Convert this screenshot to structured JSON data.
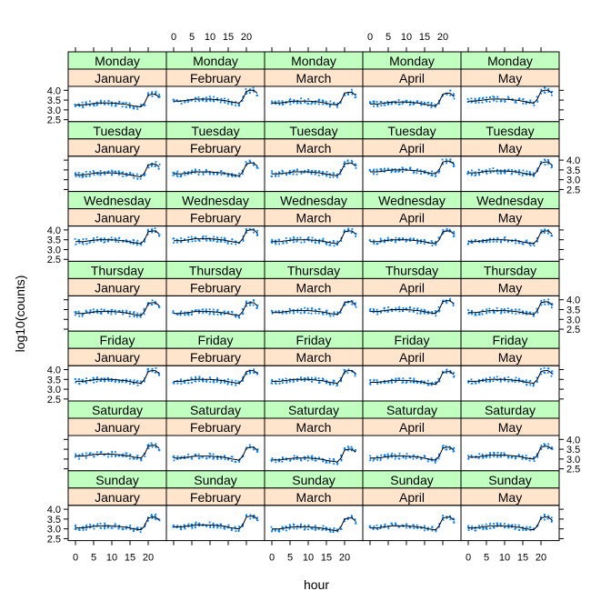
{
  "chart_data": {
    "type": "scatter",
    "xlabel": "hour",
    "ylabel": "log10(counts)",
    "xlim": [
      -2,
      25
    ],
    "ylim": [
      2.4,
      4.2
    ],
    "x_ticks": [
      0,
      5,
      10,
      15,
      20
    ],
    "x_tick_labels": [
      "0",
      "5",
      "10",
      "15",
      "20"
    ],
    "y_ticks": [
      2.5,
      3.0,
      3.5,
      4.0
    ],
    "y_tick_labels": [
      "2.5",
      "3.0",
      "3.5",
      "4.0"
    ],
    "strip_colors": {
      "day": "#c0ffc0",
      "month": "#ffe5cc"
    },
    "point_color": "#0080ff",
    "line_color": "#000000",
    "months": [
      "January",
      "February",
      "March",
      "April",
      "May"
    ],
    "days": [
      "Monday",
      "Tuesday",
      "Wednesday",
      "Thursday",
      "Friday",
      "Saturday",
      "Sunday"
    ],
    "base_profile": {
      "x": [
        0,
        2,
        4,
        6,
        8,
        10,
        12,
        14,
        16,
        18,
        19,
        20,
        21,
        22,
        23
      ],
      "y": [
        3.35,
        3.35,
        3.4,
        3.45,
        3.45,
        3.45,
        3.42,
        3.38,
        3.3,
        3.25,
        3.45,
        3.85,
        3.9,
        3.9,
        3.75
      ]
    },
    "panels_fit": [
      {
        "day": "Monday",
        "level": [
          3.3,
          3.5,
          3.4,
          3.35,
          3.5
        ]
      },
      {
        "day": "Tuesday",
        "level": [
          3.3,
          3.35,
          3.35,
          3.45,
          3.4
        ]
      },
      {
        "day": "Wednesday",
        "level": [
          3.45,
          3.5,
          3.45,
          3.45,
          3.45
        ]
      },
      {
        "day": "Thursday",
        "level": [
          3.35,
          3.35,
          3.4,
          3.45,
          3.4
        ]
      },
      {
        "day": "Friday",
        "level": [
          3.45,
          3.45,
          3.45,
          3.4,
          3.45
        ]
      },
      {
        "day": "Saturday",
        "level": [
          3.2,
          3.1,
          3.0,
          3.1,
          3.15
        ]
      },
      {
        "day": "Sunday",
        "level": [
          3.1,
          3.15,
          3.05,
          3.1,
          3.1
        ]
      }
    ]
  }
}
